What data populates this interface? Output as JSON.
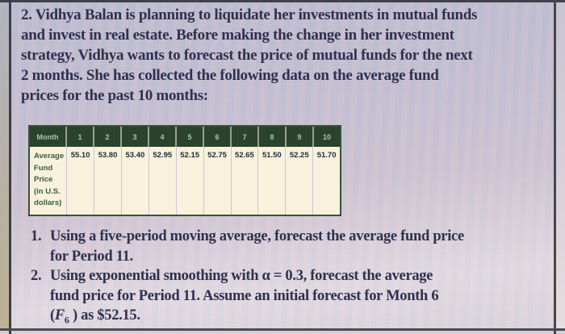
{
  "intro": {
    "lines": [
      "2. Vidhya Balan is planning to liquidate her investments in mutual funds",
      "and invest in real estate. Before making the change in her investment",
      "strategy, Vidhya wants to forecast the price of mutual funds for the next",
      "2 months. She has collected the following data on the average fund",
      "prices for the past 10 months:"
    ]
  },
  "table": {
    "corner_label": "Month",
    "months": [
      "1",
      "2",
      "3",
      "4",
      "5",
      "6",
      "7",
      "8",
      "9",
      "10"
    ],
    "row_header_lines": [
      "Average",
      "Fund",
      "Price",
      "(in U.S.",
      "dollars)"
    ],
    "row_header_full": "Average Fund Price (in U.S. dollars)",
    "prices": [
      "55.10",
      "53.80",
      "53.40",
      "52.95",
      "52.15",
      "52.75",
      "52.65",
      "51.50",
      "52.25",
      "51.70"
    ],
    "colors": {
      "header_bg": "#2b432d",
      "header_text": "#a3c8a0",
      "body_bg": "#f8f2dd",
      "row_header_text": "#3d5b41",
      "value_text": "#232c3d"
    }
  },
  "questions": {
    "item1": {
      "number": "1.",
      "lines": [
        "Using a five-period moving average, forecast the average fund price",
        "for Period 11."
      ]
    },
    "item2": {
      "number": "2.",
      "lines": [
        "Using exponential smoothing with α = 0.3, forecast the average",
        "fund price for Period 11. Assume an initial forecast for Month 6"
      ],
      "formula": {
        "open": "(",
        "symbol": "F",
        "subscript": "6",
        "close": " ) as $52.15."
      }
    }
  }
}
